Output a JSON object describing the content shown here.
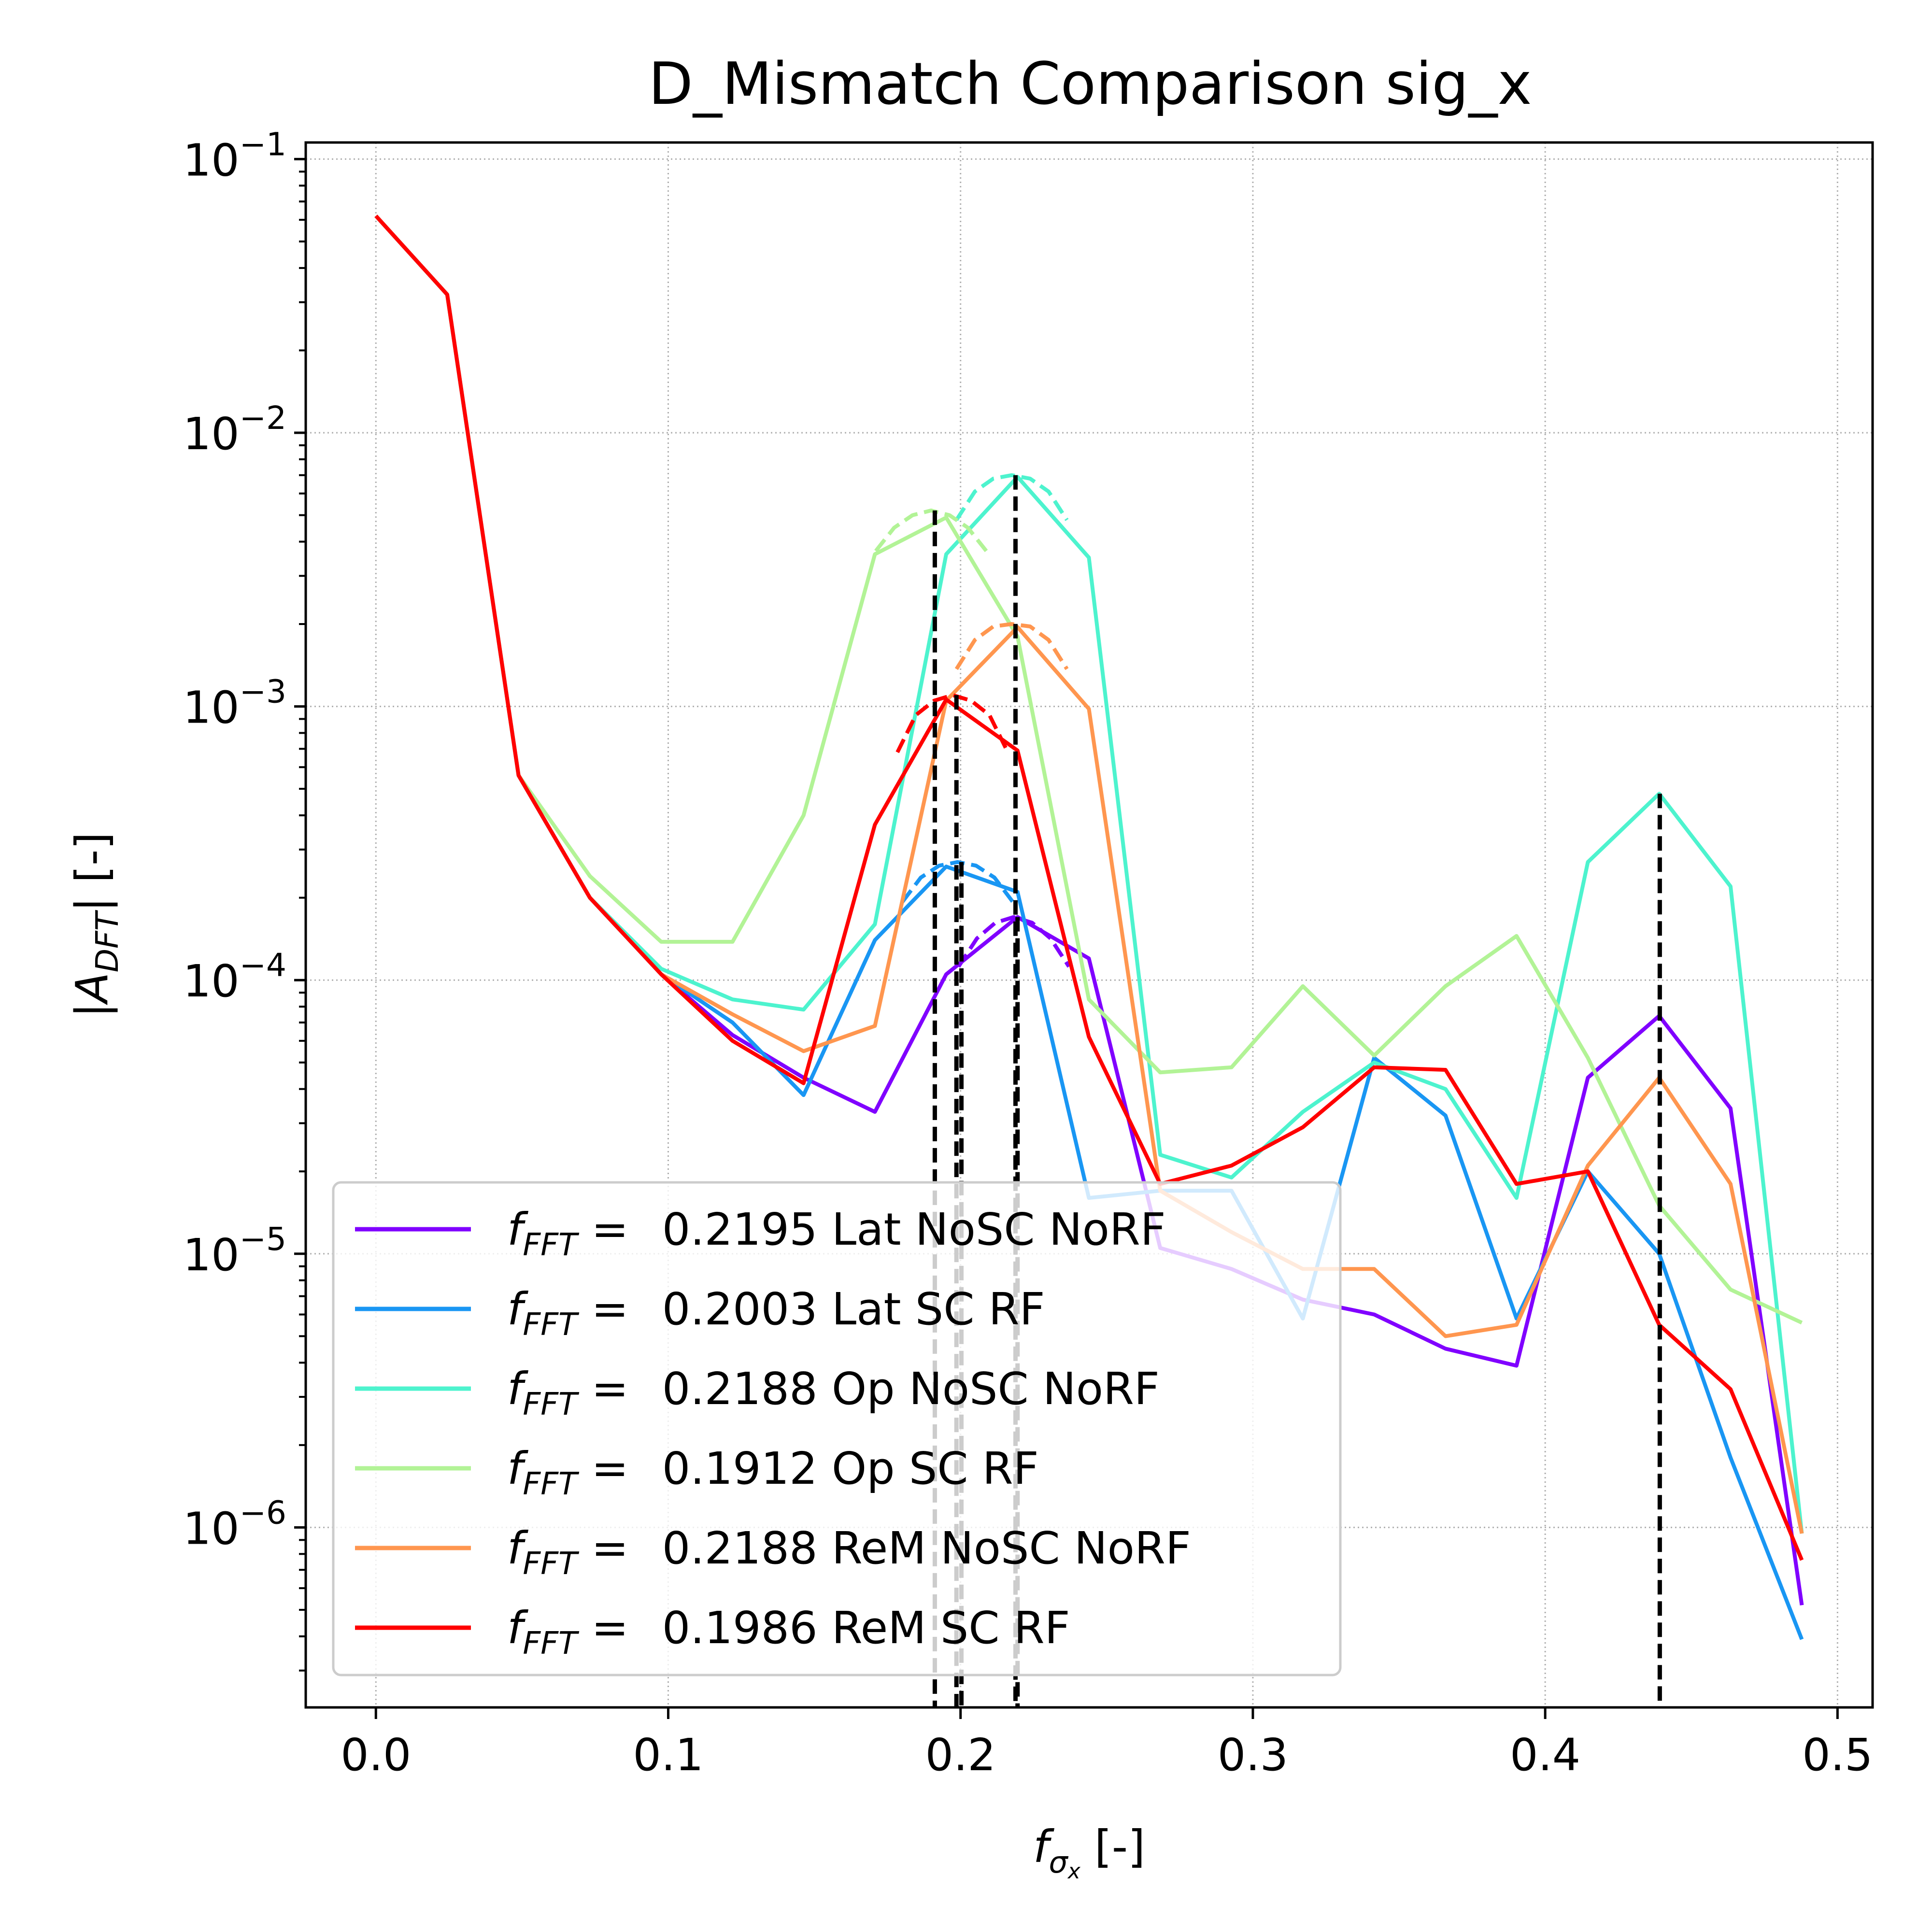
{
  "chart_data": {
    "type": "line",
    "title": "D_Mismatch Comparison sig_x",
    "xlabel": {
      "base": "f",
      "sub": "σ",
      "subsub": "x",
      "unit": "[-]"
    },
    "ylabel": {
      "pre": "|A",
      "sub": "DFT",
      "post": "| [-]"
    },
    "xlim": [
      -0.024,
      0.512
    ],
    "ylim": [
      2.2e-07,
      0.115
    ],
    "yscale": "log",
    "grid": true,
    "legend_position": "lower-left",
    "x_ticks": [
      "0.0",
      "0.1",
      "0.2",
      "0.3",
      "0.4",
      "0.5"
    ],
    "y_ticks": [
      {
        "base": "10",
        "exp": "−1"
      },
      {
        "base": "10",
        "exp": "−2"
      },
      {
        "base": "10",
        "exp": "−3"
      },
      {
        "base": "10",
        "exp": "−4"
      },
      {
        "base": "10",
        "exp": "−5"
      },
      {
        "base": "10",
        "exp": "−6"
      }
    ],
    "x": [
      0.0,
      0.0244,
      0.0488,
      0.0732,
      0.0976,
      0.122,
      0.1463,
      0.1707,
      0.1951,
      0.2195,
      0.2439,
      0.2683,
      0.2927,
      0.3171,
      0.3415,
      0.3659,
      0.3902,
      0.4146,
      0.439,
      0.4634,
      0.4878
    ],
    "series": [
      {
        "name": "0.2195 Lat NoSC NoRF",
        "color": "#8000ff",
        "values": [
          0.062,
          0.032,
          0.00056,
          0.0002,
          0.000105,
          6.3e-05,
          4.4e-05,
          3.3e-05,
          0.000105,
          0.00017,
          0.00012,
          1.05e-05,
          8.8e-06,
          6.8e-06,
          6e-06,
          4.5e-06,
          3.9e-06,
          4.4e-05,
          7.4e-05,
          3.4e-05,
          5.2e-07
        ],
        "fit": {
          "x": [
            0.1993,
            0.2056,
            0.2119,
            0.2182,
            0.2245,
            0.2308,
            0.2371
          ],
          "values": [
            0.000112,
            0.000142,
            0.000162,
            0.00017,
            0.000162,
            0.000142,
            0.000112
          ]
        }
      },
      {
        "name": "0.2003 Lat SC RF",
        "color": "#1996f3",
        "values": [
          0.062,
          0.032,
          0.00056,
          0.0002,
          0.000105,
          7e-05,
          3.8e-05,
          0.00014,
          0.00026,
          0.00021,
          1.6e-05,
          1.7e-05,
          1.7e-05,
          5.8e-06,
          5.2e-05,
          3.2e-05,
          5.8e-06,
          2e-05,
          1e-05,
          1.8e-06,
          3.9e-07
        ],
        "fit": {
          "x": [
            0.1801,
            0.1864,
            0.1927,
            0.199,
            0.2053,
            0.2116,
            0.2179
          ],
          "values": [
            0.000193,
            0.000237,
            0.000262,
            0.00027,
            0.000262,
            0.000237,
            0.000193
          ]
        }
      },
      {
        "name": "0.2188 Op NoSC NoRF",
        "color": "#4df3ce",
        "values": [
          0.062,
          0.032,
          0.00056,
          0.0002,
          0.00011,
          8.5e-05,
          7.8e-05,
          0.00016,
          0.0036,
          0.0069,
          0.0035,
          2.3e-05,
          1.9e-05,
          3.3e-05,
          5e-05,
          4e-05,
          1.6e-05,
          0.00027,
          0.00048,
          0.00022,
          9.5e-07
        ],
        "fit": {
          "x": [
            0.1986,
            0.2049,
            0.2112,
            0.2175,
            0.2238,
            0.2301,
            0.2364
          ],
          "values": [
            0.0048,
            0.0061,
            0.0068,
            0.007,
            0.0068,
            0.0061,
            0.0048
          ]
        }
      },
      {
        "name": "0.1912 Op SC RF",
        "color": "#b2f396",
        "values": [
          0.062,
          0.032,
          0.00056,
          0.00024,
          0.000138,
          0.000138,
          0.0004,
          0.0036,
          0.0049,
          0.0018,
          8.5e-05,
          4.6e-05,
          4.8e-05,
          9.5e-05,
          5.3e-05,
          9.5e-05,
          0.000145,
          5.2e-05,
          1.5e-05,
          7.4e-06,
          5.6e-06
        ],
        "fit": {
          "x": [
            0.171,
            0.1773,
            0.1836,
            0.1899,
            0.1962,
            0.2025,
            0.2088
          ],
          "values": [
            0.0037,
            0.0045,
            0.005,
            0.0052,
            0.005,
            0.0045,
            0.0037
          ]
        }
      },
      {
        "name": "0.2188 ReM NoSC NoRF",
        "color": "#ff964f",
        "values": [
          0.062,
          0.032,
          0.00056,
          0.0002,
          0.000105,
          7.5e-05,
          5.5e-05,
          6.8e-05,
          0.00105,
          0.00195,
          0.00098,
          1.7e-05,
          1.2e-05,
          8.8e-06,
          8.8e-06,
          5e-06,
          5.5e-06,
          2.1e-05,
          4.4e-05,
          1.8e-05,
          9.5e-07
        ],
        "fit": {
          "x": [
            0.1986,
            0.2049,
            0.2112,
            0.2175,
            0.2238,
            0.2301,
            0.2364
          ],
          "values": [
            0.00137,
            0.00175,
            0.00196,
            0.002,
            0.00196,
            0.00175,
            0.00137
          ]
        }
      },
      {
        "name": "0.1986 ReM SC RF",
        "color": "#ff0000",
        "values": [
          0.062,
          0.032,
          0.00056,
          0.0002,
          0.000105,
          6e-05,
          4.2e-05,
          0.00037,
          0.00106,
          0.00069,
          6.2e-05,
          1.8e-05,
          2.1e-05,
          2.9e-05,
          4.8e-05,
          4.7e-05,
          1.8e-05,
          2e-05,
          5.5e-06,
          3.2e-06,
          7.6e-07
        ],
        "fit": {
          "x": [
            0.1784,
            0.1847,
            0.191,
            0.1973,
            0.2036,
            0.2099,
            0.2162
          ],
          "values": [
            0.00068,
            0.00093,
            0.00105,
            0.0011,
            0.00105,
            0.00093,
            0.00068
          ]
        }
      }
    ],
    "vlines": [
      {
        "x": 0.1912,
        "top": 0.0052
      },
      {
        "x": 0.1986,
        "top": 0.0011
      },
      {
        "x": 0.2003,
        "top": 0.00027
      },
      {
        "x": 0.2188,
        "top": 0.007
      },
      {
        "x": 0.2195,
        "top": 0.00017
      },
      {
        "x": 0.4392,
        "top": 0.00048
      }
    ],
    "legend": {
      "label_base": "f",
      "label_sub": "FFT",
      "label_eq": " = ",
      "entries": [
        "0.2195 Lat NoSC NoRF",
        "0.2003 Lat SC RF",
        "0.2188 Op NoSC NoRF",
        "0.1912 Op SC RF",
        "0.2188 ReM NoSC NoRF",
        "0.1986 ReM SC RF"
      ]
    }
  }
}
